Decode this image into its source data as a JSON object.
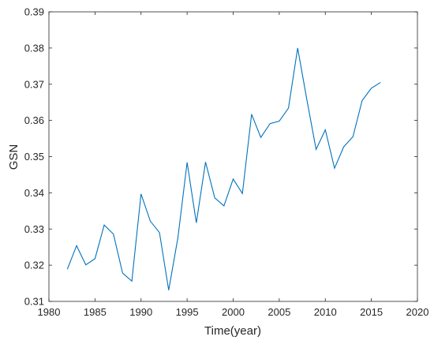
{
  "chart_data": {
    "type": "line",
    "title": "",
    "xlabel": "Time(year)",
    "ylabel": "GSN",
    "xlim": [
      1980,
      2020
    ],
    "ylim": [
      0.31,
      0.39
    ],
    "xticks": [
      1980,
      1985,
      1990,
      1995,
      2000,
      2005,
      2010,
      2015,
      2020
    ],
    "yticks": [
      0.31,
      0.32,
      0.33,
      0.34,
      0.35,
      0.36,
      0.37,
      0.38,
      0.39
    ],
    "xtick_labels": [
      "1980",
      "1985",
      "1990",
      "1995",
      "2000",
      "2005",
      "2010",
      "2015",
      "2020"
    ],
    "ytick_labels": [
      "0.31",
      "0.32",
      "0.33",
      "0.34",
      "0.35",
      "0.36",
      "0.37",
      "0.38",
      "0.39"
    ],
    "grid": false,
    "legend": "none",
    "color": "#0072BD",
    "series": [
      {
        "x": [
          1982,
          1983,
          1984,
          1985,
          1986,
          1987,
          1988,
          1989,
          1990,
          1991,
          1992,
          1993,
          1994,
          1995,
          1996,
          1997,
          1998,
          1999,
          2000,
          2001,
          2002,
          2003,
          2004,
          2005,
          2006,
          2007,
          2008,
          2009,
          2010,
          2011,
          2012,
          2013,
          2014,
          2015,
          2016
        ],
        "y": [
          0.3189,
          0.3254,
          0.3201,
          0.3218,
          0.3311,
          0.3286,
          0.3178,
          0.3156,
          0.3397,
          0.3322,
          0.329,
          0.3131,
          0.3276,
          0.3484,
          0.3317,
          0.3485,
          0.3386,
          0.3364,
          0.3438,
          0.3398,
          0.3617,
          0.3553,
          0.3591,
          0.3598,
          0.3634,
          0.38,
          0.3657,
          0.352,
          0.3574,
          0.3468,
          0.3527,
          0.3555,
          0.3655,
          0.3689,
          0.3705
        ]
      }
    ]
  }
}
